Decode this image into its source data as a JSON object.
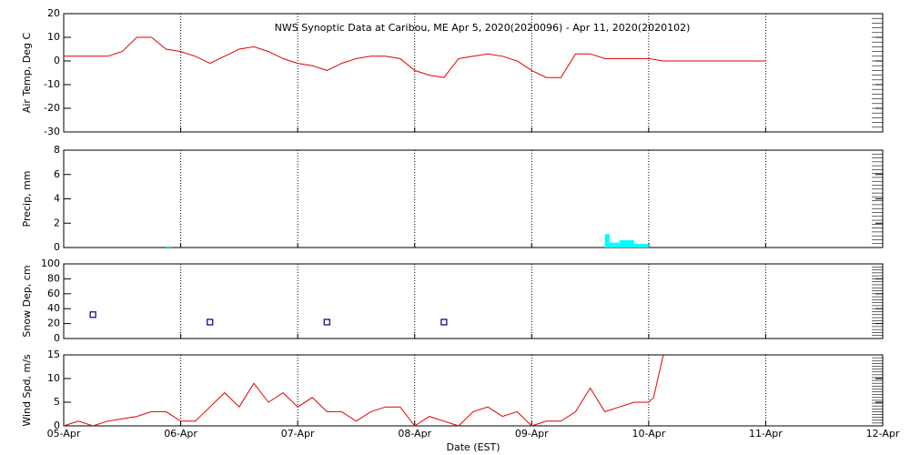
{
  "chart_data": [
    {
      "type": "line",
      "title": "NWS Synoptic Data at Caribou, ME   Apr  5, 2020(2020096) - Apr 11, 2020(2020102)",
      "ylabel": "Air Temp, Deg C",
      "color": "#e00000",
      "xlim": [
        0,
        168
      ],
      "ylim": [
        -30,
        20
      ],
      "yticks": [
        -30,
        -20,
        -10,
        0,
        10,
        20
      ],
      "x": [
        0,
        3,
        6,
        9,
        12,
        15,
        18,
        21,
        24,
        27,
        30,
        33,
        36,
        39,
        42,
        45,
        48,
        51,
        54,
        57,
        60,
        63,
        66,
        69,
        72,
        75,
        78,
        81,
        84,
        87,
        90,
        93,
        96,
        99,
        102,
        105,
        108,
        111,
        114,
        117,
        120,
        123,
        126,
        129,
        132,
        135,
        138,
        141,
        144
      ],
      "values": [
        2,
        2,
        2,
        2,
        4,
        10,
        10,
        5,
        4,
        2,
        -1,
        2,
        5,
        6,
        4,
        1,
        -1,
        -2,
        -4,
        -1,
        1,
        2,
        2,
        1,
        -4,
        -6,
        -7,
        1,
        2,
        3,
        2,
        0,
        -4,
        -7,
        -7,
        3,
        3,
        1,
        1,
        1,
        1,
        0,
        0,
        0,
        0,
        0,
        0,
        0,
        0
      ]
    },
    {
      "type": "bar",
      "ylabel": "Precip, mm",
      "color": "#00ffff",
      "xlim": [
        0,
        168
      ],
      "ylim": [
        0,
        8
      ],
      "yticks": [
        0,
        2,
        4,
        6,
        8
      ],
      "x": [
        21,
        111,
        112,
        113,
        114,
        115,
        116,
        117,
        118,
        119
      ],
      "values": [
        0.1,
        1.1,
        0.4,
        0.4,
        0.6,
        0.6,
        0.6,
        0.3,
        0.3,
        0.3
      ]
    },
    {
      "type": "scatter",
      "ylabel": "Snow Dep, cm",
      "color": "#000080",
      "xlim": [
        0,
        168
      ],
      "ylim": [
        0,
        100
      ],
      "yticks": [
        0,
        20,
        40,
        60,
        80,
        100
      ],
      "x": [
        6,
        30,
        54,
        78
      ],
      "values": [
        32,
        22,
        22,
        22
      ]
    },
    {
      "type": "line",
      "ylabel": "Wind Spd, m/s",
      "xlabel": "Date (EST)",
      "color": "#e00000",
      "xlim": [
        0,
        168
      ],
      "ylim": [
        0,
        15
      ],
      "yticks": [
        0,
        5,
        10,
        15
      ],
      "xticks": [
        {
          "value": 0,
          "label": "05-Apr"
        },
        {
          "value": 24,
          "label": "06-Apr"
        },
        {
          "value": 48,
          "label": "07-Apr"
        },
        {
          "value": 72,
          "label": "08-Apr"
        },
        {
          "value": 96,
          "label": "09-Apr"
        },
        {
          "value": 120,
          "label": "10-Apr"
        },
        {
          "value": 144,
          "label": "11-Apr"
        },
        {
          "value": 168,
          "label": "12-Apr"
        }
      ],
      "x": [
        0,
        3,
        6,
        9,
        12,
        15,
        18,
        21,
        24,
        27,
        30,
        33,
        36,
        39,
        42,
        45,
        48,
        51,
        54,
        57,
        60,
        63,
        66,
        69,
        72,
        75,
        78,
        81,
        84,
        87,
        90,
        93,
        96,
        99,
        102,
        105,
        108,
        111,
        114,
        117,
        120,
        121,
        123
      ],
      "values": [
        0,
        1,
        0,
        1,
        1.5,
        2,
        3,
        3,
        1,
        1,
        4,
        7,
        4,
        9,
        5,
        7,
        4,
        6,
        3,
        3,
        1,
        3,
        4,
        4,
        0,
        2,
        1,
        0,
        3,
        4,
        2,
        3,
        0,
        1,
        1,
        3,
        8,
        3,
        4,
        5,
        5,
        6,
        15
      ]
    }
  ]
}
